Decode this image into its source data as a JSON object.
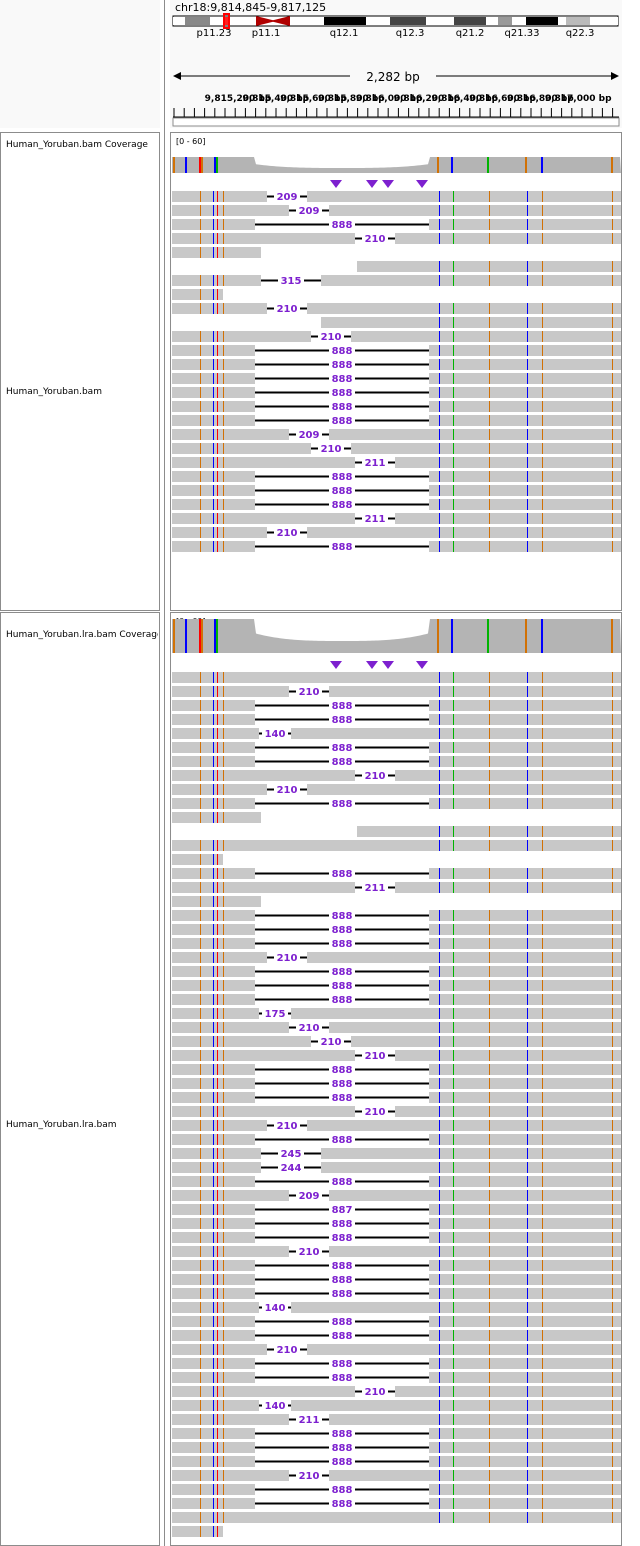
{
  "locus": "chr18:9,814,845-9,817,125",
  "span_label": "2,282 bp",
  "cytobands": [
    "p11.23",
    "p11.1",
    "q12.1",
    "q12.3",
    "q21.2",
    "q21.33",
    "q22.3"
  ],
  "ruler_labels": [
    "9,815,200 bp",
    "9,815,400 bp",
    "9,815,600 bp",
    "9,815,800 bp",
    "9,816,000 bp",
    "9,816,200 bp",
    "9,816,400 bp",
    "9,816,600 bp",
    "9,816,800 bp",
    "9,817,000 bp"
  ],
  "tracks": [
    {
      "coverage_name": "Human_Yoruban.bam Coverage",
      "alignment_name": "Human_Yoruban.bam",
      "range": "[0 - 60]",
      "insertion_markers": 4,
      "rows": [
        {
          "type": "read",
          "gap_label": "209"
        },
        {
          "type": "read",
          "gap_label": "209"
        },
        {
          "type": "read",
          "gap_label": "888"
        },
        {
          "type": "read",
          "gap_label": "210"
        },
        {
          "type": "read",
          "gap_label": ""
        },
        {
          "type": "read",
          "gap_label": ""
        },
        {
          "type": "read",
          "gap_label": "315"
        },
        {
          "type": "read",
          "gap_label": ""
        },
        {
          "type": "read",
          "gap_label": "210"
        },
        {
          "type": "read",
          "gap_label": ""
        },
        {
          "type": "read",
          "gap_label": "210"
        },
        {
          "type": "read",
          "gap_label": "888"
        },
        {
          "type": "read",
          "gap_label": "888"
        },
        {
          "type": "read",
          "gap_label": "888"
        },
        {
          "type": "read",
          "gap_label": "888"
        },
        {
          "type": "read",
          "gap_label": "888"
        },
        {
          "type": "read",
          "gap_label": "888"
        },
        {
          "type": "read",
          "gap_label": "209"
        },
        {
          "type": "read",
          "gap_label": "210"
        },
        {
          "type": "read",
          "gap_label": "211"
        },
        {
          "type": "read",
          "gap_label": "888"
        },
        {
          "type": "read",
          "gap_label": "888"
        },
        {
          "type": "read",
          "gap_label": "888"
        },
        {
          "type": "read",
          "gap_label": "211"
        },
        {
          "type": "read",
          "gap_label": "210"
        },
        {
          "type": "read",
          "gap_label": "888"
        }
      ]
    },
    {
      "coverage_name": "Human_Yoruban.lra.bam Coverage",
      "alignment_name": "Human_Yoruban.lra.bam",
      "range": "[0 - 60]",
      "insertion_markers": 4,
      "rows": [
        {
          "type": "read",
          "gap_label": ""
        },
        {
          "type": "read",
          "gap_label": "210"
        },
        {
          "type": "read",
          "gap_label": "888"
        },
        {
          "type": "read",
          "gap_label": "888"
        },
        {
          "type": "read",
          "gap_label": "140"
        },
        {
          "type": "read",
          "gap_label": "888"
        },
        {
          "type": "read",
          "gap_label": "888"
        },
        {
          "type": "read",
          "gap_label": "210"
        },
        {
          "type": "read",
          "gap_label": "210"
        },
        {
          "type": "read",
          "gap_label": "888"
        },
        {
          "type": "read",
          "gap_label": ""
        },
        {
          "type": "read",
          "gap_label": ""
        },
        {
          "type": "read",
          "gap_label": ""
        },
        {
          "type": "read",
          "gap_label": ""
        },
        {
          "type": "read",
          "gap_label": "888"
        },
        {
          "type": "read",
          "gap_label": "211"
        },
        {
          "type": "read",
          "gap_label": ""
        },
        {
          "type": "read",
          "gap_label": "888"
        },
        {
          "type": "read",
          "gap_label": "888"
        },
        {
          "type": "read",
          "gap_label": "888"
        },
        {
          "type": "read",
          "gap_label": "210"
        },
        {
          "type": "read",
          "gap_label": "888"
        },
        {
          "type": "read",
          "gap_label": "888"
        },
        {
          "type": "read",
          "gap_label": "888"
        },
        {
          "type": "read",
          "gap_label": "175"
        },
        {
          "type": "read",
          "gap_label": "210"
        },
        {
          "type": "read",
          "gap_label": "210"
        },
        {
          "type": "read",
          "gap_label": "210"
        },
        {
          "type": "read",
          "gap_label": "888"
        },
        {
          "type": "read",
          "gap_label": "888"
        },
        {
          "type": "read",
          "gap_label": "888"
        },
        {
          "type": "read",
          "gap_label": "210"
        },
        {
          "type": "read",
          "gap_label": "210"
        },
        {
          "type": "read",
          "gap_label": "888"
        },
        {
          "type": "read",
          "gap_label": "245"
        },
        {
          "type": "read",
          "gap_label": "244"
        },
        {
          "type": "read",
          "gap_label": "888"
        },
        {
          "type": "read",
          "gap_label": "209"
        },
        {
          "type": "read",
          "gap_label": "887"
        },
        {
          "type": "read",
          "gap_label": "888"
        },
        {
          "type": "read",
          "gap_label": "888"
        },
        {
          "type": "read",
          "gap_label": "210"
        },
        {
          "type": "read",
          "gap_label": "888"
        },
        {
          "type": "read",
          "gap_label": "888"
        },
        {
          "type": "read",
          "gap_label": "888"
        },
        {
          "type": "read",
          "gap_label": "140"
        },
        {
          "type": "read",
          "gap_label": "888"
        },
        {
          "type": "read",
          "gap_label": "888"
        },
        {
          "type": "read",
          "gap_label": "210"
        },
        {
          "type": "read",
          "gap_label": "888"
        },
        {
          "type": "read",
          "gap_label": "888"
        },
        {
          "type": "read",
          "gap_label": "210"
        },
        {
          "type": "read",
          "gap_label": "140"
        },
        {
          "type": "read",
          "gap_label": "211"
        },
        {
          "type": "read",
          "gap_label": "888"
        },
        {
          "type": "read",
          "gap_label": "888"
        },
        {
          "type": "read",
          "gap_label": "888"
        },
        {
          "type": "read",
          "gap_label": "210"
        },
        {
          "type": "read",
          "gap_label": "888"
        },
        {
          "type": "read",
          "gap_label": "888"
        },
        {
          "type": "read",
          "gap_label": ""
        },
        {
          "type": "read",
          "gap_label": ""
        }
      ]
    }
  ],
  "colors": {
    "read": "#c8c8c8",
    "coverage": "#b4b4b4",
    "insertion": "#7d20cf",
    "mismatch_a": "#00b400",
    "mismatch_c": "#0000ff",
    "mismatch_g": "#d17105",
    "mismatch_t": "#ff0000"
  }
}
